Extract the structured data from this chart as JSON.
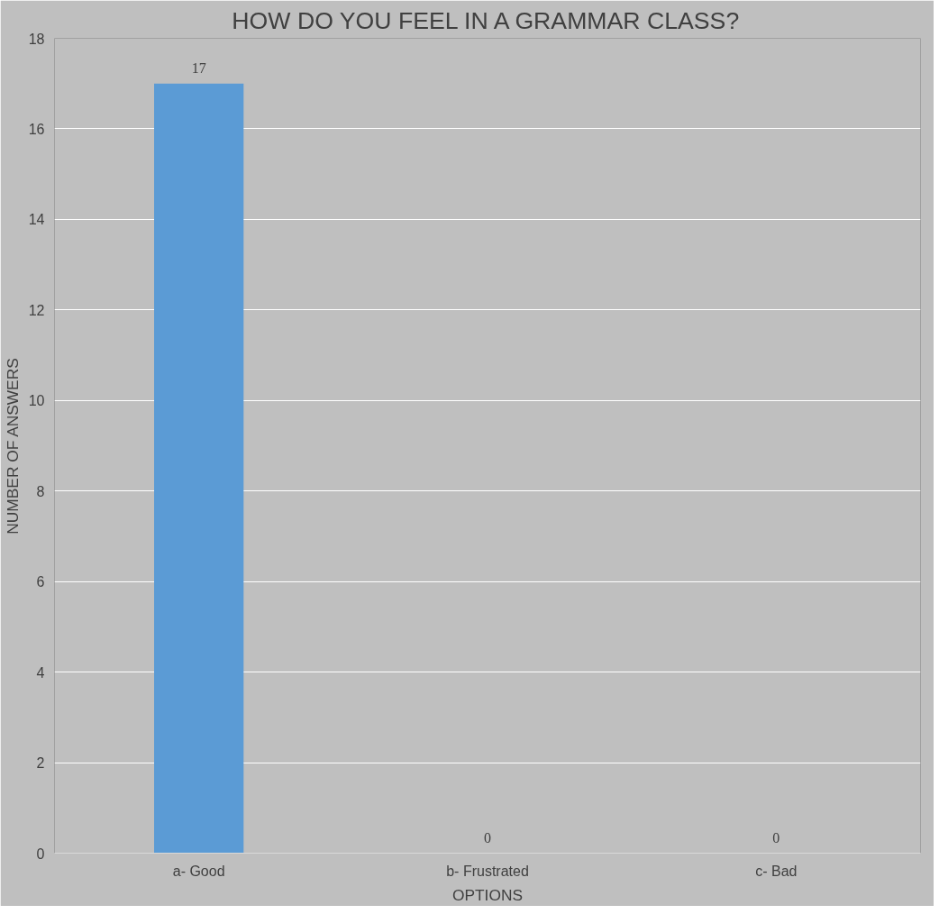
{
  "chart_data": {
    "type": "bar",
    "title": "HOW DO YOU FEEL IN A GRAMMAR CLASS?",
    "xlabel": "OPTIONS",
    "ylabel": "NUMBER OF ANSWERS",
    "categories": [
      "a- Good",
      "b- Frustrated",
      "c- Bad"
    ],
    "values": [
      17,
      0,
      0
    ],
    "color": "#5b9bd5",
    "ylim": [
      0,
      18
    ],
    "yticks": [
      0,
      2,
      4,
      6,
      8,
      10,
      12,
      14,
      16,
      18
    ],
    "grid": "y",
    "data_labels": true
  }
}
